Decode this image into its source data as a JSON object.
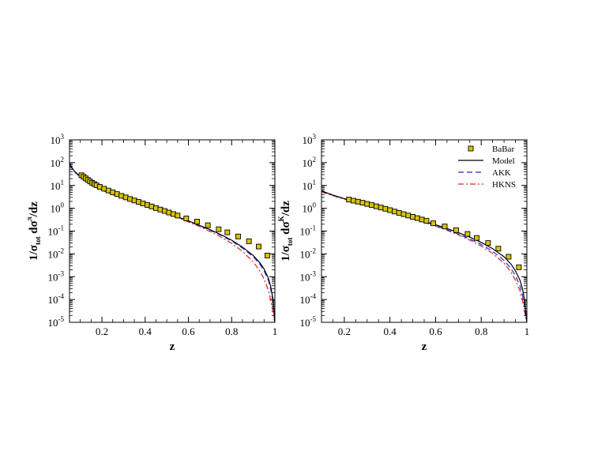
{
  "chart_data": [
    {
      "type": "line",
      "xlabel": "z",
      "ylabel": {
        "pre": "1/σ",
        "sub": "tot",
        "mid": " dσ",
        "sup": "π",
        "post": "/dz"
      },
      "xlim": [
        0.05,
        1.0
      ],
      "ylim": [
        1e-05,
        1000.0
      ],
      "yscale": "log",
      "xticks": [
        "0.2",
        "0.4",
        "0.6",
        "0.8",
        "1"
      ],
      "yticks": [
        {
          "base": "10",
          "exp": "-5"
        },
        {
          "base": "10",
          "exp": "-4"
        },
        {
          "base": "10",
          "exp": "-3"
        },
        {
          "base": "10",
          "exp": "-2"
        },
        {
          "base": "10",
          "exp": "-1"
        },
        {
          "base": "10",
          "exp": "0"
        },
        {
          "base": "10",
          "exp": "1"
        },
        {
          "base": "10",
          "exp": "2"
        },
        {
          "base": "10",
          "exp": "3"
        }
      ],
      "legend": false,
      "series": [
        {
          "name": "BaBar",
          "kind": "markers",
          "color": "#d8c400",
          "x": [
            0.105,
            0.115,
            0.125,
            0.135,
            0.145,
            0.155,
            0.165,
            0.175,
            0.19,
            0.21,
            0.23,
            0.25,
            0.27,
            0.29,
            0.31,
            0.33,
            0.35,
            0.37,
            0.39,
            0.41,
            0.43,
            0.45,
            0.47,
            0.49,
            0.51,
            0.53,
            0.55,
            0.59,
            0.64,
            0.69,
            0.74,
            0.78,
            0.83,
            0.88,
            0.925,
            0.965
          ],
          "y": [
            28,
            24,
            20.5,
            17.6,
            15,
            13,
            11.5,
            10.2,
            8.7,
            7.2,
            6,
            5,
            4.2,
            3.5,
            3.0,
            2.55,
            2.2,
            1.9,
            1.62,
            1.4,
            1.2,
            1.02,
            0.88,
            0.76,
            0.65,
            0.56,
            0.48,
            0.36,
            0.26,
            0.18,
            0.12,
            0.088,
            0.058,
            0.036,
            0.021,
            0.0085
          ]
        },
        {
          "name": "Model",
          "kind": "line",
          "color": "#000000",
          "x": [
            0.05,
            0.07,
            0.1,
            0.13,
            0.16,
            0.2,
            0.25,
            0.3,
            0.35,
            0.4,
            0.45,
            0.5,
            0.55,
            0.6,
            0.65,
            0.7,
            0.75,
            0.8,
            0.85,
            0.9,
            0.93,
            0.95,
            0.97,
            0.98,
            0.99,
            0.995,
            1.0
          ],
          "y": [
            90,
            45,
            24,
            14.5,
            10,
            6.5,
            4.2,
            2.8,
            1.9,
            1.3,
            0.9,
            0.62,
            0.42,
            0.28,
            0.18,
            0.115,
            0.07,
            0.04,
            0.02,
            0.0085,
            0.0042,
            0.0022,
            0.00085,
            0.0004,
            0.00012,
            4e-05,
            1e-05
          ]
        },
        {
          "name": "AKK",
          "kind": "line",
          "color": "#1f2fd0",
          "x": [
            0.05,
            0.07,
            0.1,
            0.13,
            0.16,
            0.2,
            0.25,
            0.3,
            0.35,
            0.4,
            0.45,
            0.5,
            0.55,
            0.6,
            0.65,
            0.7,
            0.75,
            0.8,
            0.85,
            0.9,
            0.93,
            0.95,
            0.97,
            0.98,
            0.99,
            0.995,
            1.0
          ],
          "y": [
            80,
            42,
            23,
            14,
            9.6,
            6.2,
            4.0,
            2.7,
            1.85,
            1.27,
            0.88,
            0.6,
            0.41,
            0.27,
            0.175,
            0.11,
            0.066,
            0.037,
            0.018,
            0.0075,
            0.0036,
            0.0018,
            0.0007,
            0.0003,
            9e-05,
            3e-05,
            1e-05
          ]
        },
        {
          "name": "HKNS",
          "kind": "line",
          "color": "#e02020",
          "x": [
            0.05,
            0.07,
            0.1,
            0.13,
            0.16,
            0.2,
            0.25,
            0.3,
            0.35,
            0.4,
            0.45,
            0.5,
            0.55,
            0.6,
            0.65,
            0.7,
            0.75,
            0.8,
            0.85,
            0.9,
            0.93,
            0.95,
            0.97,
            0.98,
            0.99,
            0.995,
            1.0
          ],
          "y": [
            85,
            44,
            24,
            14.5,
            10,
            6.4,
            4.1,
            2.75,
            1.85,
            1.25,
            0.86,
            0.58,
            0.39,
            0.25,
            0.16,
            0.095,
            0.055,
            0.029,
            0.013,
            0.0045,
            0.0018,
            0.0008,
            0.00025,
            0.0001,
            3e-05,
            1.5e-05,
            1e-05
          ]
        }
      ]
    },
    {
      "type": "line",
      "xlabel": "z",
      "ylabel": {
        "pre": "1/σ",
        "sub": "tot",
        "mid": " dσ",
        "sup": "K",
        "post": "/dz"
      },
      "xlim": [
        0.1,
        1.0
      ],
      "ylim": [
        1e-05,
        1000.0
      ],
      "yscale": "log",
      "xticks": [
        "0.2",
        "0.4",
        "0.6",
        "0.8",
        "1"
      ],
      "yticks": [
        {
          "base": "10",
          "exp": "-5"
        },
        {
          "base": "10",
          "exp": "-4"
        },
        {
          "base": "10",
          "exp": "-3"
        },
        {
          "base": "10",
          "exp": "-2"
        },
        {
          "base": "10",
          "exp": "-1"
        },
        {
          "base": "10",
          "exp": "0"
        },
        {
          "base": "10",
          "exp": "1"
        },
        {
          "base": "10",
          "exp": "2"
        },
        {
          "base": "10",
          "exp": "3"
        }
      ],
      "legend": true,
      "legend_position": "top-right",
      "series": [
        {
          "name": "BaBar",
          "kind": "markers",
          "color": "#d8c400",
          "x": [
            0.22,
            0.24,
            0.26,
            0.28,
            0.3,
            0.32,
            0.34,
            0.36,
            0.38,
            0.4,
            0.42,
            0.44,
            0.46,
            0.48,
            0.5,
            0.52,
            0.54,
            0.56,
            0.59,
            0.64,
            0.69,
            0.74,
            0.78,
            0.83,
            0.875,
            0.92,
            0.965
          ],
          "y": [
            2.4,
            2.15,
            1.95,
            1.75,
            1.55,
            1.38,
            1.22,
            1.08,
            0.95,
            0.83,
            0.72,
            0.63,
            0.55,
            0.48,
            0.42,
            0.37,
            0.32,
            0.28,
            0.22,
            0.16,
            0.11,
            0.075,
            0.05,
            0.03,
            0.017,
            0.0075,
            0.0026
          ]
        },
        {
          "name": "Model",
          "kind": "line",
          "color": "#000000",
          "x": [
            0.1,
            0.15,
            0.2,
            0.25,
            0.3,
            0.35,
            0.4,
            0.45,
            0.5,
            0.55,
            0.6,
            0.65,
            0.7,
            0.75,
            0.8,
            0.85,
            0.9,
            0.93,
            0.95,
            0.97,
            0.98,
            0.99,
            0.995,
            1.0
          ],
          "y": [
            5.8,
            3.8,
            2.65,
            1.9,
            1.38,
            1.0,
            0.73,
            0.53,
            0.38,
            0.27,
            0.19,
            0.13,
            0.085,
            0.054,
            0.032,
            0.017,
            0.0075,
            0.0036,
            0.0018,
            0.0007,
            0.00032,
            0.0001,
            3e-05,
            1e-05
          ]
        },
        {
          "name": "AKK",
          "kind": "line",
          "color": "#1f2fd0",
          "x": [
            0.1,
            0.15,
            0.2,
            0.25,
            0.3,
            0.35,
            0.4,
            0.45,
            0.5,
            0.55,
            0.6,
            0.65,
            0.7,
            0.75,
            0.8,
            0.85,
            0.9,
            0.93,
            0.95,
            0.97,
            0.98,
            0.99,
            0.995,
            1.0
          ],
          "y": [
            5.5,
            3.7,
            2.6,
            1.87,
            1.35,
            0.98,
            0.71,
            0.51,
            0.36,
            0.25,
            0.17,
            0.115,
            0.074,
            0.045,
            0.026,
            0.013,
            0.0052,
            0.0023,
            0.0011,
            0.0004,
            0.00017,
            5e-05,
            2e-05,
            1e-05
          ]
        },
        {
          "name": "HKNS",
          "kind": "line",
          "color": "#e02020",
          "x": [
            0.1,
            0.15,
            0.2,
            0.25,
            0.3,
            0.35,
            0.4,
            0.45,
            0.5,
            0.55,
            0.6,
            0.65,
            0.7,
            0.75,
            0.8,
            0.85,
            0.9,
            0.93,
            0.95,
            0.97,
            0.98,
            0.99,
            0.995,
            1.0
          ],
          "y": [
            5.2,
            3.55,
            2.5,
            1.82,
            1.32,
            0.96,
            0.7,
            0.5,
            0.355,
            0.245,
            0.165,
            0.108,
            0.068,
            0.04,
            0.022,
            0.0105,
            0.0039,
            0.0016,
            0.0007,
            0.00024,
            0.0001,
            3e-05,
            1.5e-05,
            1e-05
          ]
        }
      ]
    }
  ]
}
